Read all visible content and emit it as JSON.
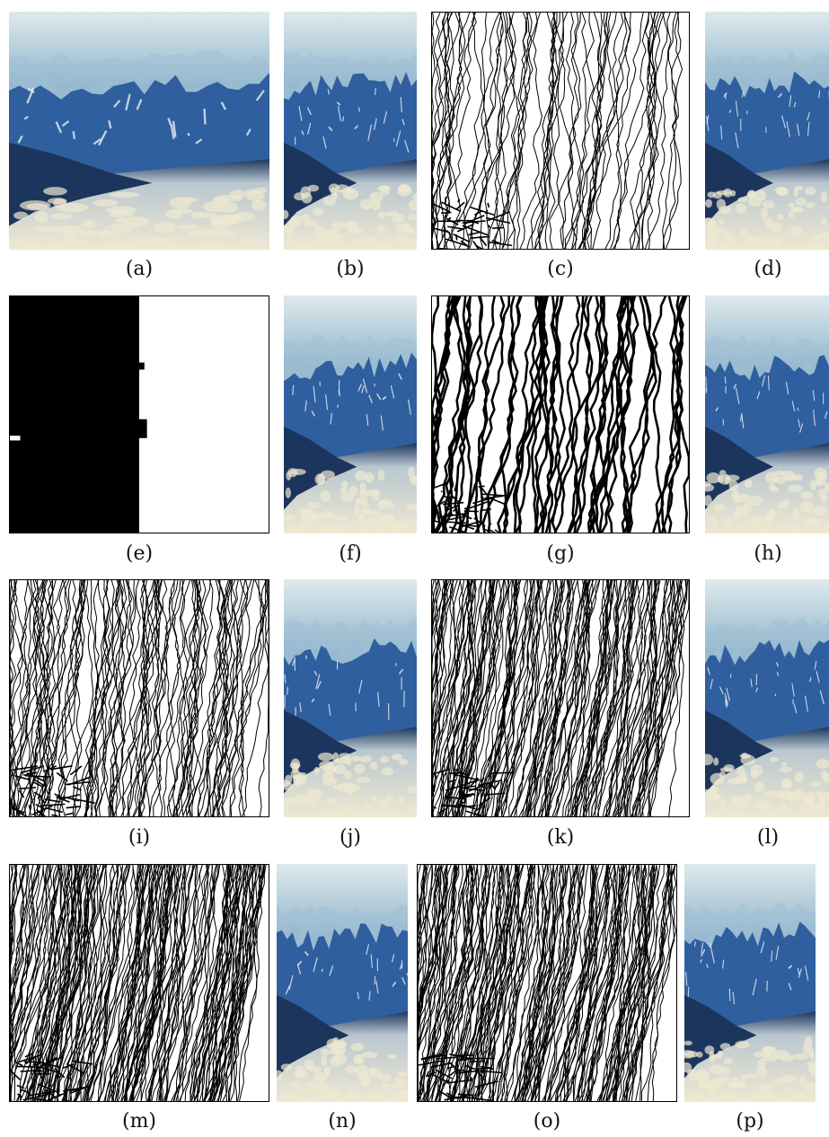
{
  "figure": {
    "rows": [
      {
        "panels": [
          {
            "id": "a",
            "label": "(a)",
            "kind": "photo",
            "seed": 1
          },
          {
            "id": "b",
            "label": "(b)",
            "kind": "photo",
            "seed": 2
          },
          {
            "id": "c",
            "label": "(c)",
            "kind": "seams",
            "seed": 11,
            "density": 70
          },
          {
            "id": "d",
            "label": "(d)",
            "kind": "photo",
            "seed": 3
          }
        ]
      },
      {
        "panels": [
          {
            "id": "e",
            "label": "(e)",
            "kind": "block",
            "seed": 4
          },
          {
            "id": "f",
            "label": "(f)",
            "kind": "photo",
            "seed": 5
          },
          {
            "id": "g",
            "label": "(g)",
            "kind": "seams-thick",
            "seed": 12,
            "density": 55
          },
          {
            "id": "h",
            "label": "(h)",
            "kind": "photo",
            "seed": 6
          }
        ]
      },
      {
        "panels": [
          {
            "id": "i",
            "label": "(i)",
            "kind": "seams",
            "seed": 13,
            "density": 110
          },
          {
            "id": "j",
            "label": "(j)",
            "kind": "photo",
            "seed": 7
          },
          {
            "id": "k",
            "label": "(k)",
            "kind": "seams-dense",
            "seed": 14,
            "density": 170
          },
          {
            "id": "l",
            "label": "(l)",
            "kind": "photo",
            "seed": 8
          }
        ]
      },
      {
        "panels": [
          {
            "id": "m",
            "label": "(m)",
            "kind": "seams-dense",
            "seed": 15,
            "density": 190
          },
          {
            "id": "n",
            "label": "(n)",
            "kind": "photo",
            "seed": 9
          },
          {
            "id": "o",
            "label": "(o)",
            "kind": "seams-dense",
            "seed": 16,
            "density": 190
          },
          {
            "id": "p",
            "label": "(p)",
            "kind": "photo",
            "seed": 10
          }
        ]
      }
    ]
  },
  "colors": {
    "sky": "#dfe9ec",
    "haze": "#9fc0d3",
    "mountain_blue": "#2f5f9e",
    "mountain_dark": "#1c355c",
    "snow": "#e8eef4",
    "cloud": "#eee8d2",
    "seam": "#000000"
  }
}
